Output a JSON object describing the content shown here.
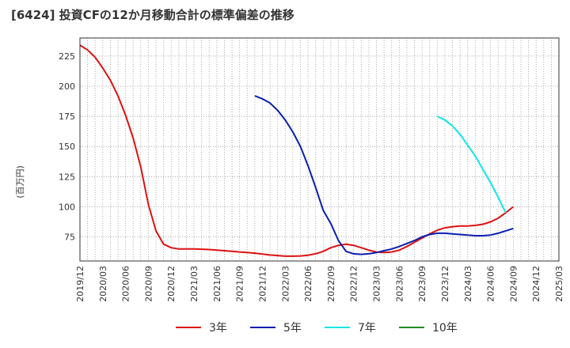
{
  "chart_data": {
    "type": "line",
    "title": "[6424]  投資CFの12か月移動合計の標準偏差の推移",
    "ylabel": "(百万円)",
    "xlabel": "",
    "ylim": [
      55,
      240
    ],
    "yticks": [
      75,
      100,
      125,
      150,
      175,
      200,
      225
    ],
    "xticks": [
      "2019/12",
      "2020/03",
      "2020/06",
      "2020/09",
      "2020/12",
      "2021/03",
      "2021/06",
      "2021/09",
      "2021/12",
      "2022/03",
      "2022/06",
      "2022/09",
      "2022/12",
      "2023/03",
      "2023/06",
      "2023/09",
      "2023/12",
      "2024/03",
      "2024/06",
      "2024/09",
      "2024/12",
      "2025/03"
    ],
    "grid": true,
    "legend": "bottom",
    "series": [
      {
        "name": "3年",
        "color": "#dd1111",
        "points": [
          [
            0,
            234
          ],
          [
            1,
            230
          ],
          [
            2,
            224
          ],
          [
            3,
            215
          ],
          [
            4,
            205
          ],
          [
            5,
            192
          ],
          [
            6,
            176
          ],
          [
            7,
            157
          ],
          [
            8,
            133
          ],
          [
            9,
            102
          ],
          [
            10,
            80
          ],
          [
            11,
            69
          ],
          [
            12,
            66
          ],
          [
            13,
            65
          ],
          [
            14,
            65
          ],
          [
            15,
            65
          ],
          [
            16,
            64.8
          ],
          [
            17,
            64.5
          ],
          [
            18,
            64
          ],
          [
            19,
            63.5
          ],
          [
            20,
            63
          ],
          [
            21,
            62.5
          ],
          [
            22,
            62
          ],
          [
            23,
            61.5
          ],
          [
            24,
            60.8
          ],
          [
            25,
            60
          ],
          [
            26,
            59.5
          ],
          [
            27,
            59
          ],
          [
            28,
            59
          ],
          [
            29,
            59.2
          ],
          [
            30,
            59.8
          ],
          [
            31,
            61
          ],
          [
            32,
            63
          ],
          [
            33,
            66
          ],
          [
            34,
            68
          ],
          [
            35,
            69
          ],
          [
            36,
            68
          ],
          [
            37,
            66
          ],
          [
            38,
            64
          ],
          [
            39,
            62.5
          ],
          [
            40,
            62
          ],
          [
            41,
            62.5
          ],
          [
            42,
            64
          ],
          [
            43,
            67
          ],
          [
            44,
            70.5
          ],
          [
            45,
            74
          ],
          [
            46,
            77.5
          ],
          [
            47,
            80.5
          ],
          [
            48,
            82.5
          ],
          [
            49,
            83.5
          ],
          [
            50,
            84
          ],
          [
            51,
            84
          ],
          [
            52,
            84.5
          ],
          [
            53,
            85.5
          ],
          [
            54,
            87.5
          ],
          [
            55,
            90.5
          ],
          [
            56,
            95
          ],
          [
            57,
            100
          ]
        ]
      },
      {
        "name": "5年",
        "color": "#0a1fb0",
        "points": [
          [
            23,
            192
          ],
          [
            24,
            189.5
          ],
          [
            25,
            186
          ],
          [
            26,
            180
          ],
          [
            27,
            172
          ],
          [
            28,
            162
          ],
          [
            29,
            150
          ],
          [
            30,
            134
          ],
          [
            31,
            116
          ],
          [
            32,
            97
          ],
          [
            33,
            86
          ],
          [
            34,
            72
          ],
          [
            35,
            63
          ],
          [
            36,
            61
          ],
          [
            37,
            60.5
          ],
          [
            38,
            61
          ],
          [
            39,
            62
          ],
          [
            40,
            63.5
          ],
          [
            41,
            65
          ],
          [
            42,
            67
          ],
          [
            43,
            69.5
          ],
          [
            44,
            72
          ],
          [
            45,
            75
          ],
          [
            46,
            77
          ],
          [
            47,
            78
          ],
          [
            48,
            78
          ],
          [
            49,
            77.5
          ],
          [
            50,
            77
          ],
          [
            51,
            76.5
          ],
          [
            52,
            76
          ],
          [
            53,
            76
          ],
          [
            54,
            76.5
          ],
          [
            55,
            78
          ],
          [
            56,
            80
          ],
          [
            57,
            82
          ]
        ]
      },
      {
        "name": "7年",
        "color": "#11e6e6",
        "points": [
          [
            47,
            175
          ],
          [
            48,
            172
          ],
          [
            49,
            167
          ],
          [
            50,
            160
          ],
          [
            51,
            151
          ],
          [
            52,
            142
          ],
          [
            53,
            131
          ],
          [
            54,
            120
          ],
          [
            55,
            108
          ],
          [
            56,
            95
          ]
        ]
      },
      {
        "name": "10年",
        "color": "#228b22",
        "points": []
      }
    ]
  }
}
